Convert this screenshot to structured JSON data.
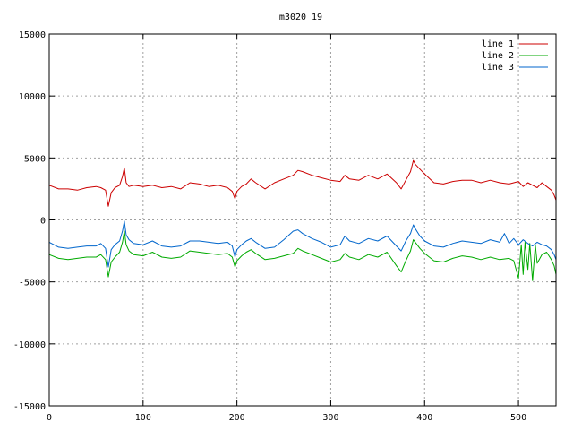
{
  "chart_data": {
    "type": "line",
    "title": "m3020_19",
    "xlabel": "",
    "ylabel": "",
    "xlim": [
      0,
      540
    ],
    "ylim": [
      -15000,
      15000
    ],
    "xticks": [
      "0",
      "100",
      "200",
      "300",
      "400",
      "500"
    ],
    "xtick_values": [
      0,
      100,
      200,
      300,
      400,
      500
    ],
    "yticks": [
      "-15000",
      "-10000",
      "-5000",
      "0",
      "5000",
      "10000",
      "15000"
    ],
    "ytick_values": [
      -15000,
      -10000,
      -5000,
      0,
      5000,
      10000,
      15000
    ],
    "grid": true,
    "legend_position": "top-right",
    "series": [
      {
        "name": "line 1",
        "color": "#cc0000",
        "x": [
          0,
          10,
          20,
          30,
          40,
          50,
          55,
          60,
          63,
          66,
          70,
          75,
          78,
          80,
          82,
          85,
          90,
          100,
          110,
          120,
          130,
          140,
          150,
          160,
          170,
          180,
          190,
          195,
          198,
          200,
          205,
          210,
          215,
          220,
          230,
          240,
          250,
          260,
          265,
          270,
          280,
          290,
          300,
          310,
          315,
          320,
          330,
          340,
          350,
          360,
          370,
          375,
          380,
          385,
          388,
          390,
          395,
          400,
          410,
          420,
          430,
          440,
          450,
          460,
          470,
          480,
          490,
          500,
          505,
          510,
          515,
          520,
          525,
          530,
          535,
          538,
          540
        ],
        "y": [
          2800,
          2500,
          2500,
          2400,
          2600,
          2700,
          2600,
          2400,
          1100,
          2200,
          2600,
          2800,
          3500,
          4200,
          3000,
          2700,
          2800,
          2700,
          2800,
          2600,
          2700,
          2500,
          3000,
          2900,
          2700,
          2800,
          2600,
          2300,
          1700,
          2300,
          2700,
          2900,
          3300,
          3000,
          2500,
          3000,
          3300,
          3600,
          4000,
          3900,
          3600,
          3400,
          3200,
          3100,
          3600,
          3300,
          3200,
          3600,
          3300,
          3700,
          3000,
          2500,
          3200,
          3900,
          4800,
          4500,
          4100,
          3700,
          3000,
          2900,
          3100,
          3200,
          3200,
          3000,
          3200,
          3000,
          2900,
          3100,
          2700,
          3000,
          2800,
          2600,
          3000,
          2700,
          2400,
          2000,
          1600
        ]
      },
      {
        "name": "line 2",
        "color": "#00aa00",
        "x": [
          0,
          10,
          20,
          30,
          40,
          50,
          55,
          60,
          63,
          66,
          70,
          75,
          78,
          80,
          82,
          85,
          90,
          100,
          110,
          120,
          130,
          140,
          150,
          160,
          170,
          180,
          190,
          195,
          198,
          200,
          205,
          210,
          215,
          220,
          230,
          240,
          250,
          260,
          265,
          270,
          280,
          290,
          300,
          310,
          315,
          320,
          330,
          340,
          350,
          360,
          370,
          375,
          380,
          385,
          388,
          390,
          395,
          400,
          410,
          420,
          430,
          440,
          450,
          460,
          470,
          480,
          490,
          495,
          500,
          503,
          505,
          507,
          510,
          512,
          515,
          518,
          520,
          525,
          530,
          535,
          538,
          540
        ],
        "y": [
          -2800,
          -3100,
          -3200,
          -3100,
          -3000,
          -3000,
          -2800,
          -3200,
          -4600,
          -3400,
          -3000,
          -2600,
          -1800,
          -900,
          -2000,
          -2500,
          -2800,
          -2900,
          -2600,
          -3000,
          -3100,
          -3000,
          -2500,
          -2600,
          -2700,
          -2800,
          -2700,
          -3000,
          -3800,
          -3300,
          -2900,
          -2600,
          -2400,
          -2700,
          -3200,
          -3100,
          -2900,
          -2700,
          -2300,
          -2500,
          -2800,
          -3100,
          -3400,
          -3200,
          -2700,
          -3000,
          -3200,
          -2800,
          -3000,
          -2600,
          -3700,
          -4200,
          -3300,
          -2500,
          -1600,
          -1800,
          -2300,
          -2700,
          -3300,
          -3400,
          -3100,
          -2900,
          -3000,
          -3200,
          -3000,
          -3200,
          -3100,
          -3300,
          -4700,
          -2000,
          -4400,
          -1800,
          -4000,
          -1900,
          -4900,
          -2000,
          -3500,
          -2800,
          -2600,
          -3200,
          -3700,
          -4400
        ]
      },
      {
        "name": "line 3",
        "color": "#0066cc",
        "x": [
          0,
          10,
          20,
          30,
          40,
          50,
          55,
          60,
          63,
          66,
          70,
          75,
          78,
          80,
          82,
          85,
          90,
          100,
          110,
          120,
          130,
          140,
          150,
          160,
          170,
          180,
          190,
          195,
          198,
          200,
          205,
          210,
          215,
          220,
          230,
          240,
          250,
          260,
          265,
          270,
          280,
          290,
          300,
          310,
          315,
          320,
          330,
          340,
          350,
          360,
          370,
          375,
          380,
          385,
          388,
          390,
          395,
          400,
          410,
          420,
          430,
          440,
          450,
          460,
          470,
          480,
          485,
          490,
          495,
          500,
          505,
          510,
          515,
          520,
          525,
          530,
          535,
          538,
          540
        ],
        "y": [
          -1800,
          -2200,
          -2300,
          -2200,
          -2100,
          -2100,
          -1900,
          -2300,
          -3800,
          -2400,
          -2000,
          -1700,
          -900,
          -100,
          -1200,
          -1600,
          -1900,
          -2000,
          -1700,
          -2100,
          -2200,
          -2100,
          -1700,
          -1700,
          -1800,
          -1900,
          -1800,
          -2100,
          -3000,
          -2400,
          -2000,
          -1700,
          -1500,
          -1800,
          -2300,
          -2200,
          -1600,
          -900,
          -800,
          -1100,
          -1500,
          -1800,
          -2200,
          -2000,
          -1300,
          -1700,
          -1900,
          -1500,
          -1700,
          -1300,
          -2100,
          -2500,
          -1700,
          -1100,
          -400,
          -700,
          -1300,
          -1700,
          -2100,
          -2200,
          -1900,
          -1700,
          -1800,
          -1900,
          -1600,
          -1800,
          -1100,
          -1900,
          -1500,
          -2000,
          -1600,
          -1900,
          -2100,
          -1800,
          -2000,
          -2100,
          -2400,
          -2800,
          -3200
        ]
      }
    ]
  }
}
